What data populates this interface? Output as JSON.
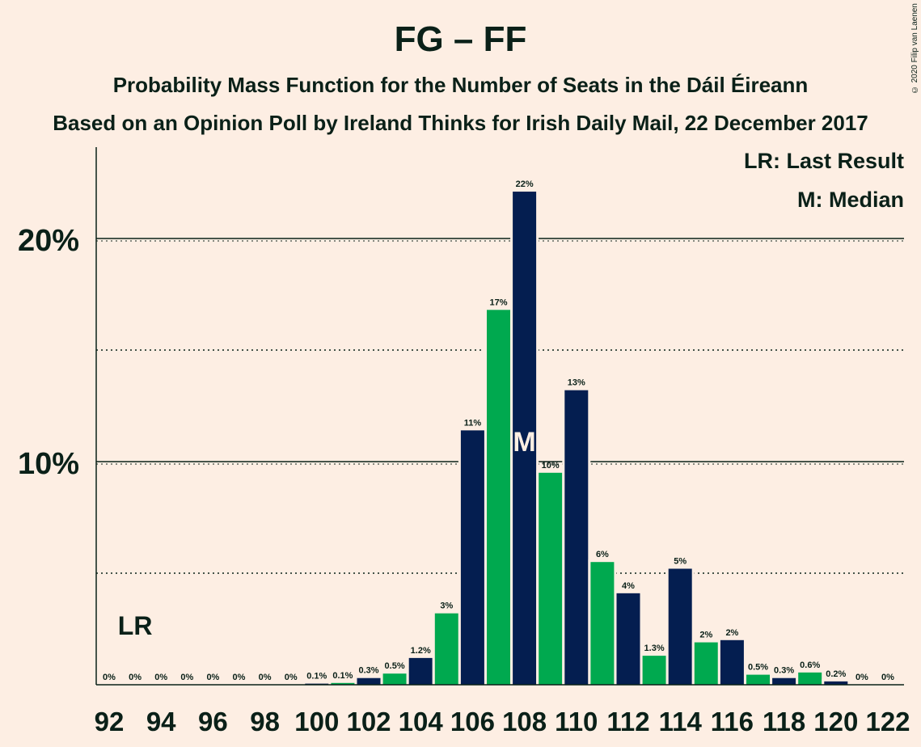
{
  "chart_data": {
    "type": "bar",
    "title": "FG – FF",
    "subtitle": "Probability Mass Function for the Number of Seats in the Dáil Éireann",
    "subtitle2": "Based on an Opinion Poll by Ireland Thinks for Irish Daily Mail, 22 December 2017",
    "copyright": "© 2020 Filip van Laenen",
    "legend_lr": "LR: Last Result",
    "legend_m": "M: Median",
    "last_result_marker": "LR",
    "last_result_seat": 93,
    "median_marker": "M",
    "median_seat": 108,
    "ylim": [
      0,
      24
    ],
    "yticks": [
      {
        "value": 10,
        "label": "10%"
      },
      {
        "value": 20,
        "label": "20%"
      }
    ],
    "dotted_lines": [
      5,
      15
    ],
    "xticks": [
      "92",
      "94",
      "96",
      "98",
      "100",
      "102",
      "104",
      "106",
      "108",
      "110",
      "112",
      "114",
      "116",
      "118",
      "120",
      "122"
    ],
    "colors": {
      "fg": "#041e50",
      "ff": "#00a94f"
    },
    "bars": [
      {
        "seat": 92,
        "value": 0,
        "label": "0%"
      },
      {
        "seat": 93,
        "value": 0,
        "label": "0%"
      },
      {
        "seat": 94,
        "value": 0,
        "label": "0%"
      },
      {
        "seat": 95,
        "value": 0,
        "label": "0%"
      },
      {
        "seat": 96,
        "value": 0,
        "label": "0%"
      },
      {
        "seat": 97,
        "value": 0,
        "label": "0%"
      },
      {
        "seat": 98,
        "value": 0,
        "label": "0%"
      },
      {
        "seat": 99,
        "value": 0,
        "label": "0%"
      },
      {
        "seat": 100,
        "value": 0.05,
        "label": "0.1%"
      },
      {
        "seat": 101,
        "value": 0.08,
        "label": "0.1%"
      },
      {
        "seat": 102,
        "value": 0.3,
        "label": "0.3%"
      },
      {
        "seat": 103,
        "value": 0.5,
        "label": "0.5%"
      },
      {
        "seat": 104,
        "value": 1.2,
        "label": "1.2%"
      },
      {
        "seat": 105,
        "value": 3.2,
        "label": "3%"
      },
      {
        "seat": 106,
        "value": 11.4,
        "label": "11%"
      },
      {
        "seat": 107,
        "value": 16.8,
        "label": "17%"
      },
      {
        "seat": 108,
        "value": 22.1,
        "label": "22%"
      },
      {
        "seat": 109,
        "value": 9.5,
        "label": "10%"
      },
      {
        "seat": 110,
        "value": 13.2,
        "label": "13%"
      },
      {
        "seat": 111,
        "value": 5.5,
        "label": "6%"
      },
      {
        "seat": 112,
        "value": 4.1,
        "label": "4%"
      },
      {
        "seat": 113,
        "value": 1.3,
        "label": "1.3%"
      },
      {
        "seat": 114,
        "value": 5.2,
        "label": "5%"
      },
      {
        "seat": 115,
        "value": 1.9,
        "label": "2%"
      },
      {
        "seat": 116,
        "value": 2.0,
        "label": "2%"
      },
      {
        "seat": 117,
        "value": 0.45,
        "label": "0.5%"
      },
      {
        "seat": 118,
        "value": 0.3,
        "label": "0.3%"
      },
      {
        "seat": 119,
        "value": 0.55,
        "label": "0.6%"
      },
      {
        "seat": 120,
        "value": 0.15,
        "label": "0.2%"
      },
      {
        "seat": 121,
        "value": 0,
        "label": "0%"
      },
      {
        "seat": 122,
        "value": 0,
        "label": "0%"
      }
    ]
  }
}
